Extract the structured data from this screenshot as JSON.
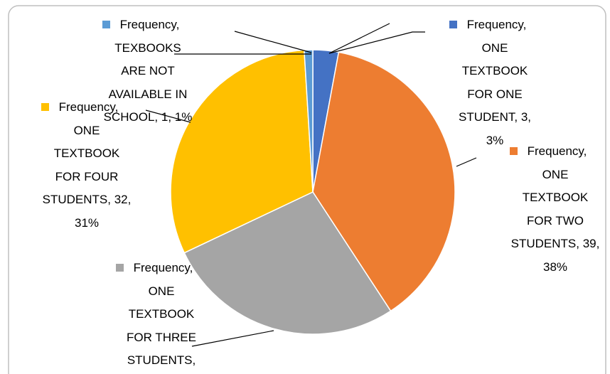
{
  "chart_data": {
    "type": "pie",
    "categories": [
      "Frequency, ONE TEXTBOOK FOR ONE STUDENT, 3, 3%",
      "Frequency, ONE TEXTBOOK FOR TWO STUDENTS, 39, 38%",
      "Frequency, ONE TEXTBOOK FOR THREE STUDENTS,",
      "Frequency, ONE TEXTBOOK FOR FOUR STUDENTS, 32, 31%",
      "Frequency, TEXBOOKS ARE NOT AVAILABLE IN SCHOOL, 1, 1%"
    ],
    "values": [
      3,
      39,
      28,
      32,
      1
    ],
    "colors": [
      "#4472c4",
      "#ed7d31",
      "#a5a5a5",
      "#ffc000",
      "#5b9bd5"
    ]
  }
}
